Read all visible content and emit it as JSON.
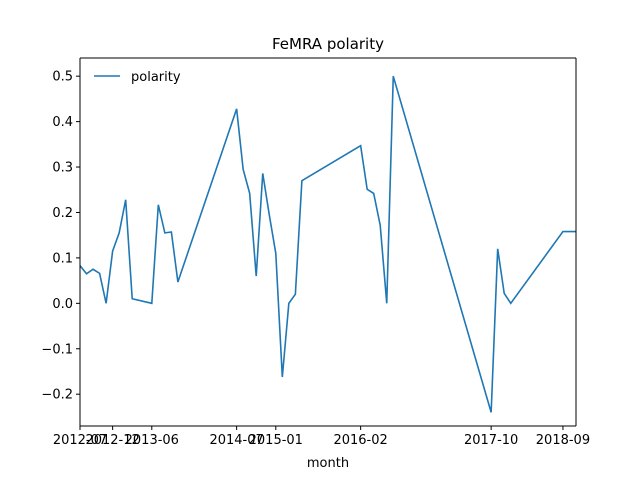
{
  "chart_data": {
    "type": "line",
    "title": "FeMRA polarity",
    "xlabel": "month",
    "ylabel": "",
    "ylim": [
      -0.27,
      0.54
    ],
    "yticks": [
      -0.2,
      -0.1,
      0.0,
      0.1,
      0.2,
      0.3,
      0.4,
      0.5
    ],
    "ytick_labels": [
      "−0.2",
      "−0.1",
      "0.0",
      "0.1",
      "0.2",
      "0.3",
      "0.4",
      "0.5"
    ],
    "xlim": [
      "2012-07",
      "2018-11"
    ],
    "xticks": [
      "2012-07",
      "2012-12",
      "2013-06",
      "2014-07",
      "2015-01",
      "2016-02",
      "2017-10",
      "2018-09"
    ],
    "legend": {
      "position": "top-left",
      "entries": [
        "polarity"
      ]
    },
    "grid": false,
    "series": [
      {
        "name": "polarity",
        "color": "#1f77b4",
        "x": [
          "2012-07",
          "2012-08",
          "2012-09",
          "2012-10",
          "2012-11",
          "2012-12",
          "2013-01",
          "2013-02",
          "2013-03",
          "2013-06",
          "2013-07",
          "2013-08",
          "2013-09",
          "2013-10",
          "2014-07",
          "2014-08",
          "2014-09",
          "2014-10",
          "2014-11",
          "2014-12",
          "2015-01",
          "2015-02",
          "2015-03",
          "2015-04",
          "2015-05",
          "2016-02",
          "2016-03",
          "2016-04",
          "2016-05",
          "2016-06",
          "2016-07",
          "2017-10",
          "2017-11",
          "2017-12",
          "2018-01",
          "2018-09",
          "2018-10",
          "2018-11"
        ],
        "values": [
          0.083,
          0.065,
          0.075,
          0.066,
          0.0,
          0.115,
          0.155,
          0.228,
          0.01,
          0.0,
          0.217,
          0.155,
          0.157,
          0.047,
          0.428,
          0.295,
          0.242,
          0.06,
          0.286,
          0.195,
          0.11,
          -0.162,
          0.0,
          0.02,
          0.27,
          0.347,
          0.251,
          0.242,
          0.172,
          0.0,
          0.5,
          -0.24,
          0.12,
          0.022,
          0.0,
          0.158,
          0.158,
          0.158
        ]
      }
    ]
  }
}
